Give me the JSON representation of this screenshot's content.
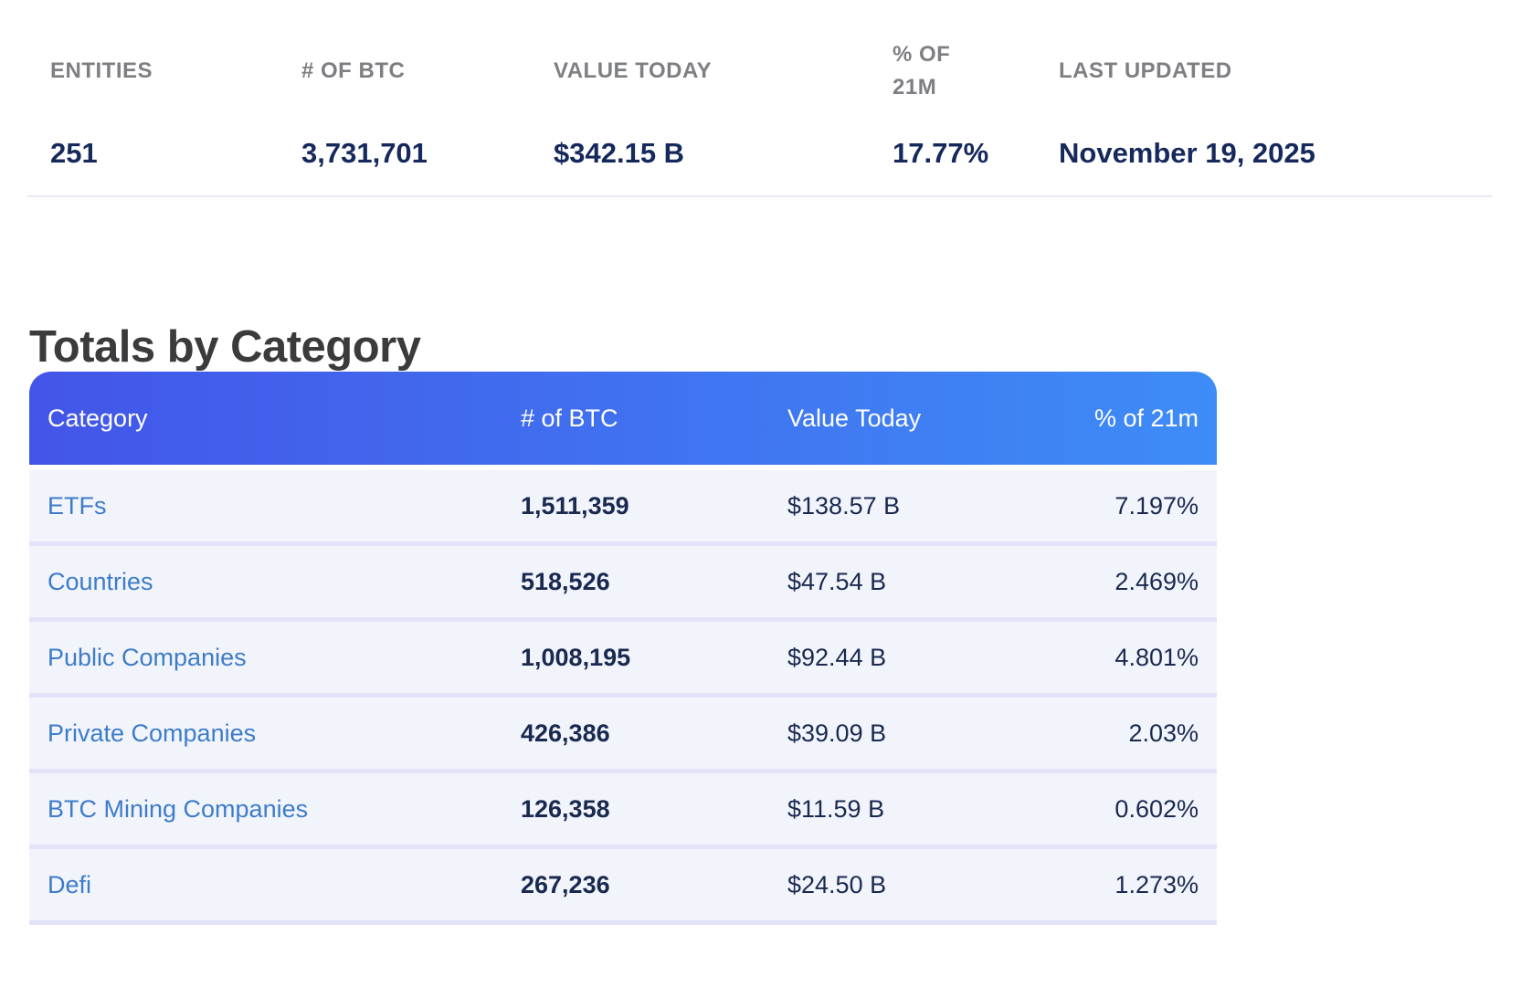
{
  "summary": {
    "columns": [
      {
        "label": "ENTITIES",
        "value": "251"
      },
      {
        "label": "# OF BTC",
        "value": "3,731,701"
      },
      {
        "label": "VALUE TODAY",
        "value": "$342.15 B"
      },
      {
        "label": "% OF 21M",
        "value": "17.77%"
      },
      {
        "label": "LAST UPDATED",
        "value": "November 19, 2025"
      }
    ]
  },
  "section": {
    "title": "Totals by Category"
  },
  "table": {
    "headers": [
      "Category",
      "# of BTC",
      "Value Today",
      "% of 21m"
    ],
    "rows": [
      {
        "category": "ETFs",
        "btc": "1,511,359",
        "value": "$138.57 B",
        "pct": "7.197%"
      },
      {
        "category": "Countries",
        "btc": "518,526",
        "value": "$47.54 B",
        "pct": "2.469%"
      },
      {
        "category": "Public Companies",
        "btc": "1,008,195",
        "value": "$92.44 B",
        "pct": "4.801%"
      },
      {
        "category": "Private Companies",
        "btc": "426,386",
        "value": "$39.09 B",
        "pct": "2.03%"
      },
      {
        "category": "BTC Mining Companies",
        "btc": "126,358",
        "value": "$11.59 B",
        "pct": "0.602%"
      },
      {
        "category": "Defi",
        "btc": "267,236",
        "value": "$24.50 B",
        "pct": "1.273%"
      }
    ]
  },
  "colors": {
    "grad-start": "#4355e8",
    "grad-end": "#3e8cf7",
    "row-bg": "#f2f4fc",
    "row-sep": "#e2e3f8",
    "link-blue": "#3d7cc9",
    "navy": "#16295c",
    "navy-cell": "#19294f",
    "label-gray": "#7e7f83",
    "heading": "#3b3b3d",
    "divider": "#e7e8f3"
  }
}
